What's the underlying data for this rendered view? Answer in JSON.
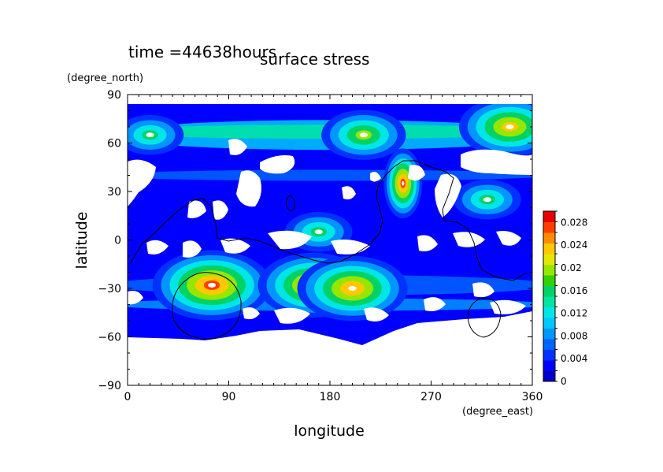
{
  "chart_data": {
    "type": "heatmap",
    "time_label": "time =44638hours",
    "title": "surface stress",
    "xlabel": "longitude",
    "ylabel": "latitude",
    "x_unit": "(degree_east)",
    "y_unit": "(degree_north)",
    "xlim": [
      0,
      360
    ],
    "ylim": [
      -90,
      90
    ],
    "x_ticks": [
      "0",
      "90",
      "180",
      "270",
      "360"
    ],
    "y_ticks": [
      "90",
      "60",
      "30",
      "0",
      "−30",
      "−60",
      "−90"
    ],
    "colorbar": {
      "min": 0,
      "max": 0.03,
      "step": 0.002,
      "tick_labels": [
        "0.028",
        "0.024",
        "0.02",
        "0.016",
        "0.012",
        "0.008",
        "0.004",
        "0"
      ],
      "colors": [
        "#0000c8",
        "#0000ff",
        "#0032ff",
        "#0064ff",
        "#0096ff",
        "#00c8ff",
        "#00e6e6",
        "#00e6a0",
        "#00d264",
        "#32d200",
        "#96e600",
        "#e6e600",
        "#ffc800",
        "#ff8c00",
        "#ff3c00",
        "#e60000"
      ]
    },
    "hotspots": [
      {
        "lon": 245,
        "lat": 35,
        "value": 0.029
      },
      {
        "lon": 75,
        "lat": -28,
        "value": 0.029
      },
      {
        "lon": 165,
        "lat": -28,
        "value": 0.027
      },
      {
        "lon": 200,
        "lat": -30,
        "value": 0.026
      },
      {
        "lon": 340,
        "lat": 70,
        "value": 0.024
      },
      {
        "lon": 210,
        "lat": 65,
        "value": 0.02
      },
      {
        "lon": 20,
        "lat": 65,
        "value": 0.016
      },
      {
        "lon": 170,
        "lat": 5,
        "value": 0.016
      },
      {
        "lon": 320,
        "lat": 25,
        "value": 0.016
      }
    ]
  }
}
